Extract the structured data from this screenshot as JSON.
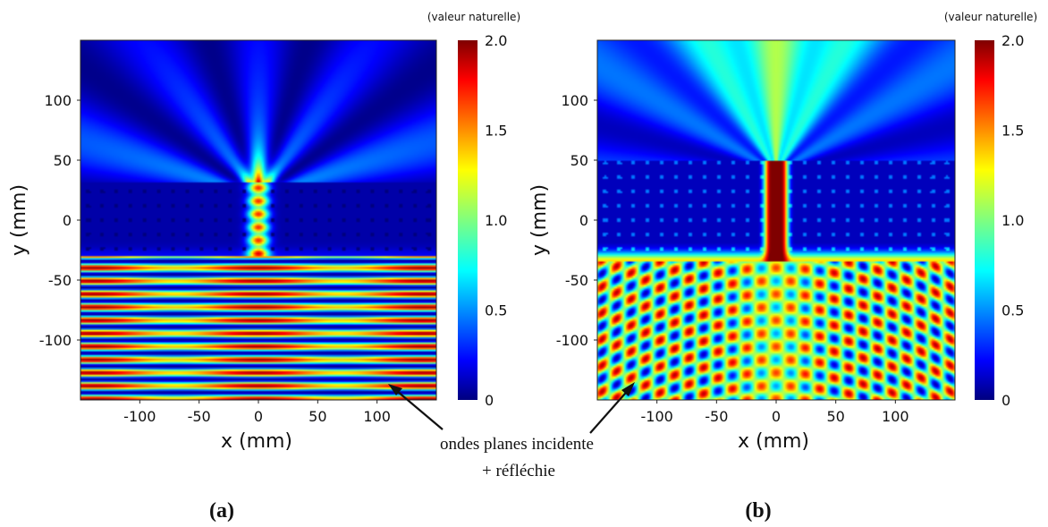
{
  "chart_data": [
    {
      "type": "heatmap",
      "panel_label": "(a)",
      "xlabel": "x (mm)",
      "ylabel": "y (mm)",
      "xlim": [
        -150,
        150
      ],
      "ylim": [
        -150,
        150
      ],
      "xticks": [
        -100,
        -50,
        0,
        50,
        100
      ],
      "yticks": [
        100,
        50,
        0,
        -50,
        -100
      ],
      "colorbar": {
        "title": "(valeur naturelle)",
        "min": 0,
        "max": 2.0,
        "tick_labels": [
          "2.0",
          "1.5",
          "1.0",
          "0.5",
          "0"
        ],
        "tick_values": [
          2.0,
          1.5,
          1.0,
          0.5,
          0
        ]
      },
      "description_regions": [
        {
          "region": "y < -30",
          "pattern": "horizontal standing-wave bands",
          "peak_value": 2.0
        },
        {
          "region": "-30 < y < 30",
          "pattern": "scatterer array with narrow channel at x = 0",
          "peak_value": 1.7
        },
        {
          "region": "y > 30",
          "pattern": "weak diffracted beams",
          "peak_value": 0.6
        }
      ]
    },
    {
      "type": "heatmap",
      "panel_label": "(b)",
      "xlabel": "x (mm)",
      "ylabel": "y (mm)",
      "xlim": [
        -150,
        150
      ],
      "ylim": [
        -150,
        150
      ],
      "xticks": [
        -100,
        -50,
        0,
        50,
        100
      ],
      "yticks": [
        100,
        50,
        0,
        -50,
        -100
      ],
      "colorbar": {
        "title": "(valeur naturelle)",
        "min": 0,
        "max": 2.0,
        "tick_labels": [
          "2.0",
          "1.5",
          "1.0",
          "0.5",
          "0"
        ],
        "tick_values": [
          2.0,
          1.5,
          1.0,
          0.5,
          0
        ]
      },
      "description_regions": [
        {
          "region": "y < -30",
          "pattern": "interference lobes",
          "peak_value": 2.0
        },
        {
          "region": "-30 < y < 50, x ~ 0",
          "pattern": "strong guided channel",
          "peak_value": 2.0
        },
        {
          "region": "y > 50",
          "pattern": "broad transmitted beam",
          "peak_value": 1.0
        }
      ]
    }
  ],
  "annotation": {
    "line1": "ondes planes incidente",
    "line2": "+ réfléchie"
  }
}
